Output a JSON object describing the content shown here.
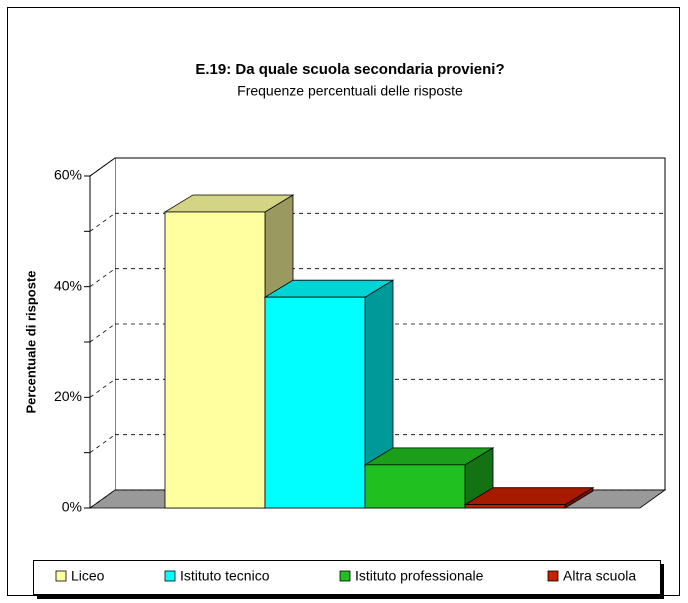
{
  "chart_data": {
    "type": "bar3d",
    "title": "E.19: Da quale scuola secondaria provieni?",
    "subtitle": "Frequenze percentuali delle risposte",
    "y_label": "Percentuale di risposte",
    "categories": [
      "Liceo",
      "Istituto tecnico",
      "Istituto professionale",
      "Altra scuola"
    ],
    "values": [
      53.5,
      38.1,
      7.8,
      0.6
    ],
    "colors": [
      "#ffffa0",
      "#00ffff",
      "#20c020",
      "#c82000"
    ],
    "ylim": [
      0,
      60
    ],
    "yticks": [
      {
        "value": 0,
        "label": "0%"
      },
      {
        "value": 20,
        "label": "20%"
      },
      {
        "value": 40,
        "label": "40%"
      },
      {
        "value": 60,
        "label": "60%"
      }
    ],
    "yticks_minor": [
      10,
      30,
      50
    ],
    "grid": true
  }
}
